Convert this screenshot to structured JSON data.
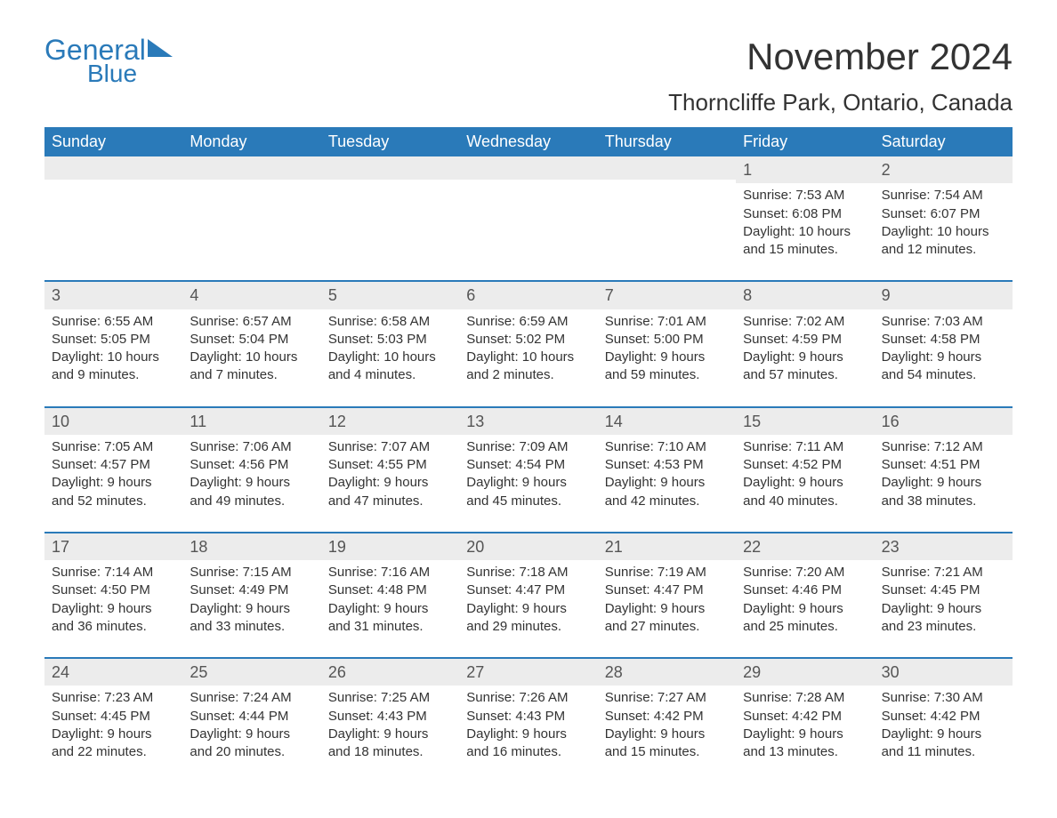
{
  "logo": {
    "text1": "General",
    "text2": "Blue"
  },
  "title": "November 2024",
  "location": "Thorncliffe Park, Ontario, Canada",
  "colors": {
    "brand": "#2a7ab9",
    "headerBg": "#2a7ab9",
    "dayBar": "#ececec",
    "text": "#333333"
  },
  "dayHeaders": [
    "Sunday",
    "Monday",
    "Tuesday",
    "Wednesday",
    "Thursday",
    "Friday",
    "Saturday"
  ],
  "weeks": [
    [
      {
        "empty": true
      },
      {
        "empty": true
      },
      {
        "empty": true
      },
      {
        "empty": true
      },
      {
        "empty": true
      },
      {
        "day": "1",
        "sunrise": "7:53 AM",
        "sunset": "6:08 PM",
        "daylight": "10 hours and 15 minutes."
      },
      {
        "day": "2",
        "sunrise": "7:54 AM",
        "sunset": "6:07 PM",
        "daylight": "10 hours and 12 minutes."
      }
    ],
    [
      {
        "day": "3",
        "sunrise": "6:55 AM",
        "sunset": "5:05 PM",
        "daylight": "10 hours and 9 minutes."
      },
      {
        "day": "4",
        "sunrise": "6:57 AM",
        "sunset": "5:04 PM",
        "daylight": "10 hours and 7 minutes."
      },
      {
        "day": "5",
        "sunrise": "6:58 AM",
        "sunset": "5:03 PM",
        "daylight": "10 hours and 4 minutes."
      },
      {
        "day": "6",
        "sunrise": "6:59 AM",
        "sunset": "5:02 PM",
        "daylight": "10 hours and 2 minutes."
      },
      {
        "day": "7",
        "sunrise": "7:01 AM",
        "sunset": "5:00 PM",
        "daylight": "9 hours and 59 minutes."
      },
      {
        "day": "8",
        "sunrise": "7:02 AM",
        "sunset": "4:59 PM",
        "daylight": "9 hours and 57 minutes."
      },
      {
        "day": "9",
        "sunrise": "7:03 AM",
        "sunset": "4:58 PM",
        "daylight": "9 hours and 54 minutes."
      }
    ],
    [
      {
        "day": "10",
        "sunrise": "7:05 AM",
        "sunset": "4:57 PM",
        "daylight": "9 hours and 52 minutes."
      },
      {
        "day": "11",
        "sunrise": "7:06 AM",
        "sunset": "4:56 PM",
        "daylight": "9 hours and 49 minutes."
      },
      {
        "day": "12",
        "sunrise": "7:07 AM",
        "sunset": "4:55 PM",
        "daylight": "9 hours and 47 minutes."
      },
      {
        "day": "13",
        "sunrise": "7:09 AM",
        "sunset": "4:54 PM",
        "daylight": "9 hours and 45 minutes."
      },
      {
        "day": "14",
        "sunrise": "7:10 AM",
        "sunset": "4:53 PM",
        "daylight": "9 hours and 42 minutes."
      },
      {
        "day": "15",
        "sunrise": "7:11 AM",
        "sunset": "4:52 PM",
        "daylight": "9 hours and 40 minutes."
      },
      {
        "day": "16",
        "sunrise": "7:12 AM",
        "sunset": "4:51 PM",
        "daylight": "9 hours and 38 minutes."
      }
    ],
    [
      {
        "day": "17",
        "sunrise": "7:14 AM",
        "sunset": "4:50 PM",
        "daylight": "9 hours and 36 minutes."
      },
      {
        "day": "18",
        "sunrise": "7:15 AM",
        "sunset": "4:49 PM",
        "daylight": "9 hours and 33 minutes."
      },
      {
        "day": "19",
        "sunrise": "7:16 AM",
        "sunset": "4:48 PM",
        "daylight": "9 hours and 31 minutes."
      },
      {
        "day": "20",
        "sunrise": "7:18 AM",
        "sunset": "4:47 PM",
        "daylight": "9 hours and 29 minutes."
      },
      {
        "day": "21",
        "sunrise": "7:19 AM",
        "sunset": "4:47 PM",
        "daylight": "9 hours and 27 minutes."
      },
      {
        "day": "22",
        "sunrise": "7:20 AM",
        "sunset": "4:46 PM",
        "daylight": "9 hours and 25 minutes."
      },
      {
        "day": "23",
        "sunrise": "7:21 AM",
        "sunset": "4:45 PM",
        "daylight": "9 hours and 23 minutes."
      }
    ],
    [
      {
        "day": "24",
        "sunrise": "7:23 AM",
        "sunset": "4:45 PM",
        "daylight": "9 hours and 22 minutes."
      },
      {
        "day": "25",
        "sunrise": "7:24 AM",
        "sunset": "4:44 PM",
        "daylight": "9 hours and 20 minutes."
      },
      {
        "day": "26",
        "sunrise": "7:25 AM",
        "sunset": "4:43 PM",
        "daylight": "9 hours and 18 minutes."
      },
      {
        "day": "27",
        "sunrise": "7:26 AM",
        "sunset": "4:43 PM",
        "daylight": "9 hours and 16 minutes."
      },
      {
        "day": "28",
        "sunrise": "7:27 AM",
        "sunset": "4:42 PM",
        "daylight": "9 hours and 15 minutes."
      },
      {
        "day": "29",
        "sunrise": "7:28 AM",
        "sunset": "4:42 PM",
        "daylight": "9 hours and 13 minutes."
      },
      {
        "day": "30",
        "sunrise": "7:30 AM",
        "sunset": "4:42 PM",
        "daylight": "9 hours and 11 minutes."
      }
    ]
  ],
  "labels": {
    "sunrise": "Sunrise: ",
    "sunset": "Sunset: ",
    "daylight": "Daylight: "
  }
}
